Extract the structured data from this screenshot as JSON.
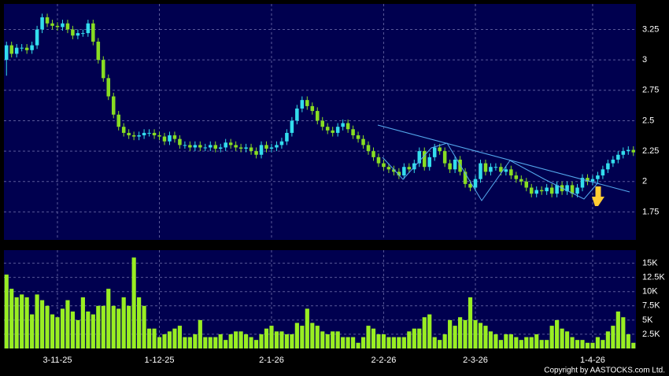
{
  "chart_data": [
    {
      "type": "candlestick",
      "up_color": "#33dded",
      "down_color": "#88dd22",
      "open": [
        3.0,
        3.12,
        3.05,
        3.1,
        3.1,
        3.08,
        3.12,
        3.25,
        3.35,
        3.3,
        3.28,
        3.27,
        3.3,
        3.25,
        3.2,
        3.22,
        3.22,
        3.3,
        3.15,
        3.0,
        2.85,
        2.7,
        2.55,
        2.45,
        2.4,
        2.38,
        2.37,
        2.38,
        2.4,
        2.4,
        2.38,
        2.37,
        2.33,
        2.38,
        2.35,
        2.3,
        2.3,
        2.28,
        2.3,
        2.28,
        2.28,
        2.3,
        2.27,
        2.28,
        2.32,
        2.3,
        2.28,
        2.27,
        2.28,
        2.25,
        2.22,
        2.3,
        2.27,
        2.28,
        2.3,
        2.33,
        2.4,
        2.5,
        2.6,
        2.67,
        2.62,
        2.58,
        2.5,
        2.45,
        2.42,
        2.4,
        2.45,
        2.48,
        2.43,
        2.38,
        2.35,
        2.3,
        2.25,
        2.2,
        2.15,
        2.12,
        2.1,
        2.08,
        2.05,
        2.12,
        2.1,
        2.15,
        2.25,
        2.12,
        2.2,
        2.28,
        2.25,
        2.15,
        2.1,
        2.18,
        2.08,
        1.98,
        1.95,
        2.02,
        2.15,
        2.08,
        2.12,
        2.12,
        2.08,
        2.1,
        2.05,
        2.02,
        2.0,
        1.95,
        1.9,
        1.93,
        1.92,
        1.95,
        1.9,
        1.97,
        1.92,
        1.97,
        1.9,
        1.95,
        2.03,
        2.0,
        2.02,
        2.05,
        2.1,
        2.15,
        2.18,
        2.22,
        2.25,
        2.26
      ],
      "high": [
        3.15,
        3.15,
        3.13,
        3.13,
        3.13,
        3.15,
        3.28,
        3.38,
        3.38,
        3.33,
        3.31,
        3.33,
        3.33,
        3.28,
        3.25,
        3.25,
        3.33,
        3.33,
        3.18,
        3.03,
        2.88,
        2.73,
        2.58,
        2.48,
        2.43,
        2.41,
        2.41,
        2.43,
        2.43,
        2.43,
        2.41,
        2.4,
        2.41,
        2.41,
        2.38,
        2.33,
        2.33,
        2.33,
        2.33,
        2.31,
        2.33,
        2.33,
        2.31,
        2.35,
        2.35,
        2.33,
        2.31,
        2.31,
        2.31,
        2.28,
        2.33,
        2.33,
        2.31,
        2.33,
        2.36,
        2.43,
        2.53,
        2.63,
        2.7,
        2.7,
        2.65,
        2.61,
        2.53,
        2.48,
        2.45,
        2.48,
        2.51,
        2.51,
        2.46,
        2.41,
        2.38,
        2.33,
        2.28,
        2.23,
        2.18,
        2.15,
        2.13,
        2.11,
        2.15,
        2.15,
        2.18,
        2.28,
        2.28,
        2.23,
        2.31,
        2.31,
        2.28,
        2.18,
        2.21,
        2.21,
        2.11,
        2.01,
        2.05,
        2.18,
        2.18,
        2.15,
        2.15,
        2.15,
        2.13,
        2.13,
        2.08,
        2.05,
        2.03,
        1.98,
        1.96,
        1.96,
        1.98,
        1.98,
        2.0,
        2.0,
        2.0,
        2.0,
        1.98,
        2.06,
        2.06,
        2.05,
        2.08,
        2.13,
        2.18,
        2.21,
        2.25,
        2.28,
        2.29,
        2.29
      ],
      "low": [
        2.87,
        3.02,
        3.02,
        3.07,
        3.05,
        3.05,
        3.09,
        3.22,
        3.27,
        3.25,
        3.24,
        3.24,
        3.22,
        3.17,
        3.17,
        3.19,
        3.19,
        3.12,
        2.97,
        2.82,
        2.67,
        2.52,
        2.42,
        2.37,
        2.35,
        2.34,
        2.34,
        2.35,
        2.37,
        2.35,
        2.34,
        2.3,
        2.3,
        2.32,
        2.27,
        2.27,
        2.25,
        2.25,
        2.25,
        2.25,
        2.25,
        2.24,
        2.24,
        2.25,
        2.27,
        2.25,
        2.24,
        2.24,
        2.22,
        2.19,
        2.19,
        2.24,
        2.24,
        2.25,
        2.27,
        2.3,
        2.37,
        2.47,
        2.57,
        2.59,
        2.55,
        2.47,
        2.42,
        2.39,
        2.37,
        2.37,
        2.42,
        2.4,
        2.35,
        2.32,
        2.27,
        2.22,
        2.17,
        2.12,
        2.09,
        2.07,
        2.05,
        2.02,
        2.02,
        2.07,
        2.07,
        2.12,
        2.09,
        2.09,
        2.17,
        2.22,
        2.12,
        2.07,
        2.07,
        2.05,
        1.95,
        1.92,
        1.92,
        1.99,
        2.05,
        2.05,
        2.09,
        2.05,
        2.05,
        2.02,
        1.99,
        1.97,
        1.92,
        1.87,
        1.87,
        1.89,
        1.89,
        1.87,
        1.87,
        1.89,
        1.89,
        1.87,
        1.87,
        1.92,
        1.97,
        1.97,
        1.99,
        2.02,
        2.07,
        2.12,
        2.15,
        2.19,
        2.22,
        2.21
      ],
      "close": [
        3.12,
        3.05,
        3.1,
        3.1,
        3.08,
        3.12,
        3.25,
        3.35,
        3.3,
        3.28,
        3.27,
        3.3,
        3.25,
        3.2,
        3.22,
        3.22,
        3.3,
        3.15,
        3.0,
        2.85,
        2.7,
        2.55,
        2.45,
        2.4,
        2.38,
        2.37,
        2.38,
        2.4,
        2.4,
        2.38,
        2.37,
        2.33,
        2.38,
        2.35,
        2.3,
        2.3,
        2.28,
        2.3,
        2.28,
        2.28,
        2.3,
        2.27,
        2.28,
        2.32,
        2.3,
        2.28,
        2.27,
        2.28,
        2.25,
        2.22,
        2.3,
        2.27,
        2.28,
        2.3,
        2.33,
        2.4,
        2.5,
        2.6,
        2.67,
        2.62,
        2.58,
        2.5,
        2.45,
        2.42,
        2.4,
        2.45,
        2.48,
        2.43,
        2.38,
        2.35,
        2.3,
        2.25,
        2.2,
        2.15,
        2.12,
        2.1,
        2.08,
        2.05,
        2.12,
        2.1,
        2.15,
        2.25,
        2.12,
        2.2,
        2.28,
        2.25,
        2.15,
        2.1,
        2.18,
        2.08,
        1.98,
        1.95,
        2.02,
        2.15,
        2.08,
        2.12,
        2.12,
        2.08,
        2.1,
        2.05,
        2.02,
        2.0,
        1.95,
        1.9,
        1.93,
        1.92,
        1.95,
        1.9,
        1.97,
        1.92,
        1.97,
        1.9,
        1.95,
        2.03,
        2.0,
        2.02,
        2.05,
        2.1,
        2.15,
        2.18,
        2.22,
        2.25,
        2.26,
        2.24
      ],
      "ylim": [
        1.52,
        3.46
      ],
      "yticks": [
        1.75,
        2,
        2.25,
        2.5,
        2.75,
        3,
        3.25
      ],
      "grid": true
    },
    {
      "type": "bar",
      "color": "#99ee22",
      "categories": [
        null,
        null,
        null,
        null,
        null,
        null,
        null,
        null,
        null,
        null,
        "3-11-25",
        null,
        null,
        null,
        null,
        null,
        null,
        null,
        null,
        null,
        null,
        null,
        null,
        null,
        null,
        null,
        null,
        null,
        null,
        null,
        "1-12-25",
        null,
        null,
        null,
        null,
        null,
        null,
        null,
        null,
        null,
        null,
        null,
        null,
        null,
        null,
        null,
        null,
        null,
        null,
        null,
        null,
        null,
        "2-1-26",
        null,
        null,
        null,
        null,
        null,
        null,
        null,
        null,
        null,
        null,
        null,
        null,
        null,
        null,
        null,
        null,
        null,
        null,
        null,
        null,
        null,
        "2-2-26",
        null,
        null,
        null,
        null,
        null,
        null,
        null,
        null,
        null,
        null,
        null,
        null,
        null,
        null,
        null,
        null,
        null,
        "2-3-26",
        null,
        null,
        null,
        null,
        null,
        null,
        null,
        null,
        null,
        null,
        null,
        null,
        null,
        null,
        null,
        null,
        null,
        null,
        null,
        null,
        null,
        null,
        "1-4-26",
        null,
        null,
        null,
        null,
        null,
        null,
        null,
        null
      ],
      "values": [
        13000,
        10500,
        9000,
        9500,
        9000,
        6000,
        9500,
        8500,
        7500,
        6000,
        5500,
        7000,
        8500,
        6500,
        5000,
        9000,
        6500,
        6000,
        7500,
        7500,
        10500,
        7500,
        7000,
        9000,
        7500,
        16000,
        9000,
        7500,
        3500,
        3500,
        2000,
        2500,
        3000,
        3500,
        4000,
        2000,
        2000,
        2500,
        5000,
        2000,
        2000,
        2000,
        2500,
        1500,
        2500,
        3000,
        3000,
        2500,
        2000,
        1500,
        2500,
        3500,
        4000,
        3000,
        3000,
        2500,
        2500,
        4500,
        4000,
        7000,
        4500,
        4000,
        3000,
        2500,
        3000,
        3000,
        2000,
        2000,
        2000,
        1000,
        2000,
        4000,
        3500,
        2500,
        2500,
        2000,
        2000,
        2000,
        2000,
        3000,
        3500,
        3500,
        5500,
        6000,
        2000,
        1500,
        2500,
        5000,
        4000,
        5500,
        5000,
        9000,
        5000,
        4500,
        4000,
        3000,
        2500,
        1500,
        2500,
        2500,
        2000,
        1500,
        2000,
        2000,
        2500,
        1500,
        1500,
        4000,
        5000,
        3500,
        3000,
        2000,
        1500,
        1500,
        1000,
        1000,
        2000,
        1500,
        3000,
        4000,
        6500,
        5500,
        2500,
        1000
      ],
      "ylim": [
        0,
        17300
      ],
      "yticks": [
        {
          "value": 2500,
          "label": "2.5K"
        },
        {
          "value": 5000,
          "label": "5K"
        },
        {
          "value": 7500,
          "label": "7.5K"
        },
        {
          "value": 10000,
          "label": "10K"
        },
        {
          "value": 12500,
          "label": "12.5K"
        },
        {
          "value": 15000,
          "label": "15K"
        }
      ],
      "grid": true,
      "copyright": "Copyright by AASTOCKS.com Ltd."
    }
  ]
}
